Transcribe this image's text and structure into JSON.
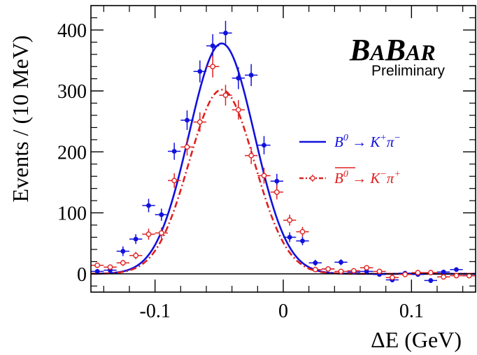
{
  "chart_data": {
    "type": "scatter",
    "xlabel": "ΔE (GeV)",
    "ylabel": "Events / (10 MeV)",
    "xlim": [
      -0.15,
      0.15
    ],
    "ylim": [
      -30,
      440
    ],
    "x_ticks": [
      -0.1,
      0,
      0.1
    ],
    "x_tick_labels": [
      "-0.1",
      "0",
      "0.1"
    ],
    "y_ticks": [
      0,
      100,
      200,
      300,
      400
    ],
    "y_tick_labels": [
      "0",
      "100",
      "200",
      "300",
      "400"
    ],
    "grid": false,
    "legend_position": "right",
    "logo": {
      "text": "BABAR",
      "sub": "Preliminary"
    },
    "series": [
      {
        "name": "B0 → K+π−",
        "legend": {
          "base": "B",
          "sup": "0",
          "rest": " → K",
          "sup2": "+",
          "rest2": "π",
          "sup3": "−"
        },
        "color": "#1111dd",
        "marker": "filled-circle",
        "points": [
          {
            "x": -0.145,
            "y": 4,
            "err": 4
          },
          {
            "x": -0.135,
            "y": 6,
            "err": 5
          },
          {
            "x": -0.125,
            "y": 37,
            "err": 8
          },
          {
            "x": -0.115,
            "y": 57,
            "err": 8
          },
          {
            "x": -0.105,
            "y": 112,
            "err": 11
          },
          {
            "x": -0.095,
            "y": 97,
            "err": 10
          },
          {
            "x": -0.085,
            "y": 201,
            "err": 14
          },
          {
            "x": -0.075,
            "y": 252,
            "err": 16
          },
          {
            "x": -0.065,
            "y": 332,
            "err": 18
          },
          {
            "x": -0.055,
            "y": 374,
            "err": 19
          },
          {
            "x": -0.045,
            "y": 395,
            "err": 20
          },
          {
            "x": -0.035,
            "y": 321,
            "err": 18
          },
          {
            "x": -0.025,
            "y": 326,
            "err": 18
          },
          {
            "x": -0.015,
            "y": 211,
            "err": 15
          },
          {
            "x": -0.005,
            "y": 152,
            "err": 12
          },
          {
            "x": 0.005,
            "y": 60,
            "err": 8
          },
          {
            "x": 0.015,
            "y": 54,
            "err": 7
          },
          {
            "x": 0.025,
            "y": 18,
            "err": 5
          },
          {
            "x": 0.035,
            "y": 8,
            "err": 4
          },
          {
            "x": 0.045,
            "y": 19,
            "err": 5
          },
          {
            "x": 0.055,
            "y": 3,
            "err": 3
          },
          {
            "x": 0.065,
            "y": 4,
            "err": 3
          },
          {
            "x": 0.075,
            "y": -1,
            "err": 3
          },
          {
            "x": 0.085,
            "y": -10,
            "err": 4
          },
          {
            "x": 0.095,
            "y": 1,
            "err": 3
          },
          {
            "x": 0.105,
            "y": -1,
            "err": 3
          },
          {
            "x": 0.115,
            "y": -11,
            "err": 4
          },
          {
            "x": 0.125,
            "y": 3,
            "err": 3
          },
          {
            "x": 0.135,
            "y": 7,
            "err": 3
          },
          {
            "x": 0.145,
            "y": -3,
            "err": 3
          }
        ],
        "fit": {
          "amplitude": 378,
          "mean": -0.048,
          "sigma": 0.0255,
          "style": "solid"
        }
      },
      {
        "name": "B0bar → K−π+",
        "legend": {
          "base": "B",
          "sup": "0",
          "overline": true,
          "rest": " → K",
          "sup2": "−",
          "rest2": "π",
          "sup3": "+"
        },
        "color": "#e02020",
        "marker": "open-circle",
        "points": [
          {
            "x": -0.145,
            "y": 14,
            "err": 4
          },
          {
            "x": -0.135,
            "y": 11,
            "err": 4
          },
          {
            "x": -0.125,
            "y": 18,
            "err": 5
          },
          {
            "x": -0.115,
            "y": 30,
            "err": 6
          },
          {
            "x": -0.105,
            "y": 65,
            "err": 9
          },
          {
            "x": -0.095,
            "y": 67,
            "err": 9
          },
          {
            "x": -0.085,
            "y": 153,
            "err": 12
          },
          {
            "x": -0.075,
            "y": 208,
            "err": 14
          },
          {
            "x": -0.065,
            "y": 249,
            "err": 16
          },
          {
            "x": -0.055,
            "y": 340,
            "err": 18
          },
          {
            "x": -0.045,
            "y": 293,
            "err": 17
          },
          {
            "x": -0.035,
            "y": 269,
            "err": 16
          },
          {
            "x": -0.025,
            "y": 194,
            "err": 14
          },
          {
            "x": -0.015,
            "y": 161,
            "err": 13
          },
          {
            "x": -0.005,
            "y": 134,
            "err": 12
          },
          {
            "x": 0.005,
            "y": 88,
            "err": 9
          },
          {
            "x": 0.015,
            "y": 69,
            "err": 8
          },
          {
            "x": 0.025,
            "y": 7,
            "err": 4
          },
          {
            "x": 0.035,
            "y": 8,
            "err": 4
          },
          {
            "x": 0.045,
            "y": 4,
            "err": 3
          },
          {
            "x": 0.055,
            "y": 5,
            "err": 3
          },
          {
            "x": 0.065,
            "y": 10,
            "err": 3
          },
          {
            "x": 0.075,
            "y": 4,
            "err": 3
          },
          {
            "x": 0.085,
            "y": -6,
            "err": 3
          },
          {
            "x": 0.095,
            "y": -1,
            "err": 3
          },
          {
            "x": 0.105,
            "y": 2,
            "err": 3
          },
          {
            "x": 0.115,
            "y": 2,
            "err": 3
          },
          {
            "x": 0.125,
            "y": -5,
            "err": 3
          },
          {
            "x": 0.135,
            "y": -3,
            "err": 3
          },
          {
            "x": 0.145,
            "y": -3,
            "err": 3
          }
        ],
        "fit": {
          "amplitude": 302,
          "mean": -0.048,
          "sigma": 0.0255,
          "style": "dash-dot"
        }
      }
    ]
  }
}
